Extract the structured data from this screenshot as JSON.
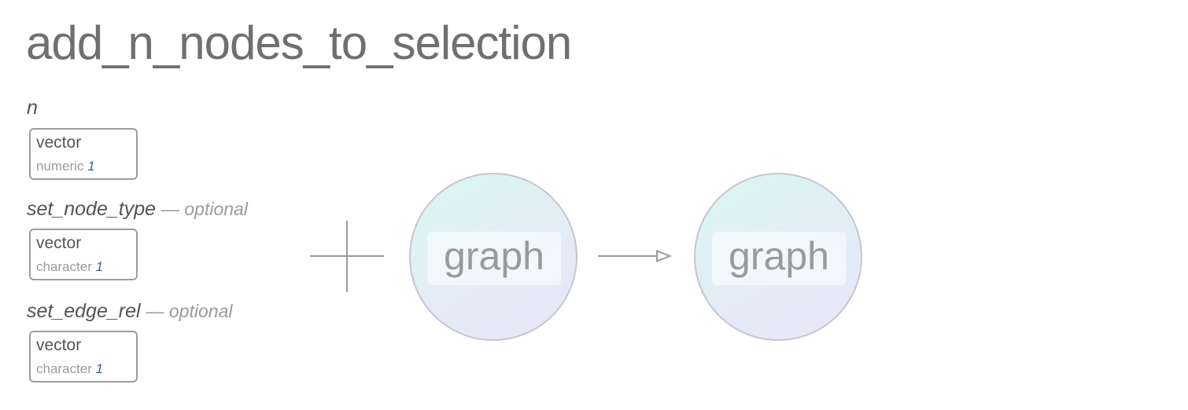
{
  "title": "add_n_nodes_to_selection",
  "params": [
    {
      "name": "n",
      "optional": "",
      "type": "vector",
      "subtype": "numeric",
      "count": "1"
    },
    {
      "name": "set_node_type",
      "optional": "— optional",
      "type": "vector",
      "subtype": "character",
      "count": "1"
    },
    {
      "name": "set_edge_rel",
      "optional": "— optional",
      "type": "vector",
      "subtype": "character",
      "count": "1"
    }
  ],
  "input_object": "graph",
  "output_object": "graph"
}
